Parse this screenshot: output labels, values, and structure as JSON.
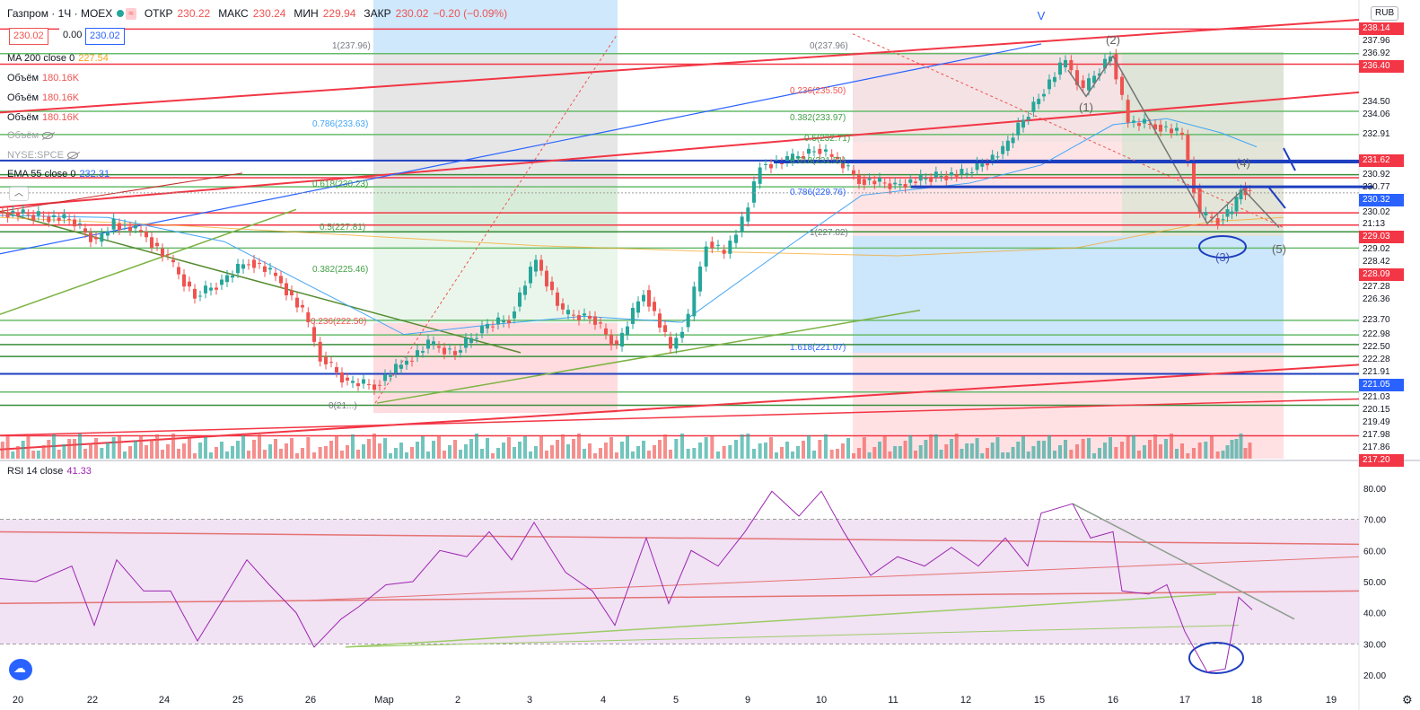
{
  "header": {
    "symbol": "Газпром · 1Ч · MOEX",
    "open_label": "ОТКР",
    "open": "230.22",
    "high_label": "МАКС",
    "high": "230.24",
    "low_label": "МИН",
    "low": "229.94",
    "close_label": "ЗАКР",
    "close": "230.02",
    "change": "−0.20 (−0.09%)"
  },
  "price_boxes": {
    "bid": "230.02",
    "spread": "0.00",
    "ask": "230.02"
  },
  "indicators": [
    {
      "name": "MA 200 close 0",
      "value": "227.54",
      "color": "#f7a21b"
    },
    {
      "name": "Объём",
      "value": "180.16K",
      "color": "#ef5350"
    },
    {
      "name": "Объём",
      "value": "180.16K",
      "color": "#ef5350"
    },
    {
      "name": "Объём",
      "value": "180.16K",
      "color": "#ef5350"
    },
    {
      "name": "Объём",
      "value": "",
      "color": "#a0a4ab"
    },
    {
      "name": "NYSE:SPCE",
      "value": "",
      "color": "#a0a4ab"
    },
    {
      "name": "EMA 55 close 0",
      "value": "232.31",
      "color": "#2962ff"
    }
  ],
  "rsi_legend": {
    "name": "RSI 14 close",
    "value": "41.33"
  },
  "currency": "RUB",
  "chart_data": {
    "type": "candlestick",
    "price_axis": {
      "range": [
        217.2,
        238.6
      ],
      "labels": [
        {
          "v": "238.14",
          "bg": "#f23645"
        },
        {
          "v": "237.96",
          "bg": ""
        },
        {
          "v": "236.92",
          "bg": ""
        },
        {
          "v": "236.40",
          "bg": "#f23645"
        },
        {
          "v": "234.50",
          "bg": ""
        },
        {
          "v": "234.06",
          "bg": ""
        },
        {
          "v": "232.91",
          "bg": ""
        },
        {
          "v": "231.62",
          "bg": "#f23645"
        },
        {
          "v": "230.92",
          "bg": ""
        },
        {
          "v": "230.77",
          "bg": ""
        },
        {
          "v": "230.32",
          "bg": "#2962ff"
        },
        {
          "v": "230.02",
          "bg": ""
        },
        {
          "v": "229.03",
          "bg": "#f23645"
        },
        {
          "v": "229.02",
          "bg": ""
        },
        {
          "v": "228.42",
          "bg": ""
        },
        {
          "v": "228.09",
          "bg": "#f23645"
        },
        {
          "v": "227.28",
          "bg": ""
        },
        {
          "v": "226.36",
          "bg": ""
        },
        {
          "v": "223.70",
          "bg": ""
        },
        {
          "v": "222.98",
          "bg": ""
        },
        {
          "v": "222.50",
          "bg": ""
        },
        {
          "v": "222.28",
          "bg": ""
        },
        {
          "v": "221.91",
          "bg": ""
        },
        {
          "v": "221.05",
          "bg": "#2962ff"
        },
        {
          "v": "221.03",
          "bg": ""
        },
        {
          "v": "220.15",
          "bg": ""
        },
        {
          "v": "219.49",
          "bg": ""
        },
        {
          "v": "217.98",
          "bg": ""
        },
        {
          "v": "217.86",
          "bg": ""
        },
        {
          "v": "217.20",
          "bg": "#f23645"
        }
      ],
      "countdown": "21:13"
    },
    "x_axis_labels": [
      "20",
      "22",
      "24",
      "25",
      "26",
      "Мар",
      "2",
      "3",
      "4",
      "5",
      "9",
      "10",
      "11",
      "12",
      "15",
      "16",
      "17",
      "18",
      "19"
    ],
    "hlines": [
      {
        "y": 238.14,
        "color": "#f23645"
      },
      {
        "y": 236.4,
        "color": "#f23645"
      },
      {
        "y": 236.92,
        "color": "#66bb6a"
      },
      {
        "y": 234.06,
        "color": "#66bb6a"
      },
      {
        "y": 232.91,
        "color": "#66bb6a"
      },
      {
        "y": 231.62,
        "color": "#1e3fbf"
      },
      {
        "y": 230.92,
        "color": "#388e3c"
      },
      {
        "y": 230.77,
        "color": "#f23645"
      },
      {
        "y": 230.32,
        "color": "#66bb6a"
      },
      {
        "y": 229.03,
        "color": "#f23645"
      },
      {
        "y": 228.42,
        "color": "#f23645"
      },
      {
        "y": 228.09,
        "color": "#388e3c"
      },
      {
        "y": 227.28,
        "color": "#66bb6a"
      },
      {
        "y": 223.7,
        "color": "#66bb6a"
      },
      {
        "y": 222.98,
        "color": "#66bb6a"
      },
      {
        "y": 222.5,
        "color": "#388e3c"
      },
      {
        "y": 221.91,
        "color": "#388e3c"
      },
      {
        "y": 221.05,
        "color": "#1e3fbf"
      },
      {
        "y": 220.15,
        "color": "#66bb6a"
      },
      {
        "y": 219.49,
        "color": "#388e3c"
      },
      {
        "y": 217.98,
        "color": "#f23645"
      }
    ],
    "fib_left_labels": [
      "1(237.96)",
      "0.786(233.63)",
      "0.618(230.23)",
      "0.5(227.81)",
      "0.382(225.46)",
      "0.236(222.50)",
      "0(21...)"
    ],
    "fib_right_labels": [
      "0(237.96)",
      "0.236(235.50)",
      "0.382(233.97)",
      "0.5(232.71)",
      "0.618(231.51)",
      "0.786(229.76)",
      "1(227.82)",
      "1.618(221.07)"
    ],
    "wave_labels": [
      "(1)",
      "(2)",
      "(3)",
      "(4)",
      "(5)",
      "V"
    ],
    "rsi_axis": [
      "80.00",
      "70.00",
      "60.00",
      "50.00",
      "40.00",
      "30.00",
      "20.00"
    ],
    "rsi_range": [
      14,
      86
    ],
    "rsi_band": [
      30,
      70
    ],
    "price_series": [
      {
        "t": 0,
        "p": 229.1
      },
      {
        "t": 40,
        "p": 228.9
      },
      {
        "t": 80,
        "p": 228.7
      },
      {
        "t": 110,
        "p": 227.6
      },
      {
        "t": 130,
        "p": 228.5
      },
      {
        "t": 160,
        "p": 228.1
      },
      {
        "t": 190,
        "p": 226.7
      },
      {
        "t": 220,
        "p": 224.9
      },
      {
        "t": 250,
        "p": 225.6
      },
      {
        "t": 280,
        "p": 226.7
      },
      {
        "t": 310,
        "p": 225.9
      },
      {
        "t": 340,
        "p": 224.1
      },
      {
        "t": 360,
        "p": 221.9
      },
      {
        "t": 390,
        "p": 220.6
      },
      {
        "t": 420,
        "p": 220.5
      },
      {
        "t": 450,
        "p": 221.5
      },
      {
        "t": 480,
        "p": 222.5
      },
      {
        "t": 510,
        "p": 222.1
      },
      {
        "t": 540,
        "p": 223.3
      },
      {
        "t": 570,
        "p": 223.8
      },
      {
        "t": 600,
        "p": 226.7
      },
      {
        "t": 630,
        "p": 224.0
      },
      {
        "t": 660,
        "p": 223.9
      },
      {
        "t": 690,
        "p": 222.4
      },
      {
        "t": 720,
        "p": 225.2
      },
      {
        "t": 750,
        "p": 222.3
      },
      {
        "t": 770,
        "p": 223.9
      },
      {
        "t": 790,
        "p": 227.6
      },
      {
        "t": 810,
        "p": 227.0
      },
      {
        "t": 830,
        "p": 228.6
      },
      {
        "t": 850,
        "p": 231.4
      },
      {
        "t": 880,
        "p": 231.6
      },
      {
        "t": 910,
        "p": 232.2
      },
      {
        "t": 930,
        "p": 231.8
      },
      {
        "t": 960,
        "p": 230.7
      },
      {
        "t": 1000,
        "p": 230.4
      },
      {
        "t": 1040,
        "p": 230.8
      },
      {
        "t": 1080,
        "p": 231.0
      },
      {
        "t": 1120,
        "p": 232.1
      },
      {
        "t": 1160,
        "p": 234.8
      },
      {
        "t": 1190,
        "p": 236.6
      },
      {
        "t": 1210,
        "p": 235.1
      },
      {
        "t": 1240,
        "p": 236.9
      },
      {
        "t": 1260,
        "p": 233.5
      },
      {
        "t": 1290,
        "p": 233.4
      },
      {
        "t": 1320,
        "p": 232.9
      },
      {
        "t": 1340,
        "p": 228.9
      },
      {
        "t": 1360,
        "p": 228.7
      },
      {
        "t": 1375,
        "p": 229.1
      },
      {
        "t": 1385,
        "p": 230.3
      },
      {
        "t": 1395,
        "p": 230.0
      }
    ],
    "rsi_series": [
      {
        "t": 0,
        "r": 51
      },
      {
        "t": 40,
        "r": 50
      },
      {
        "t": 80,
        "r": 55
      },
      {
        "t": 105,
        "r": 36
      },
      {
        "t": 130,
        "r": 57
      },
      {
        "t": 160,
        "r": 47
      },
      {
        "t": 190,
        "r": 47
      },
      {
        "t": 220,
        "r": 31
      },
      {
        "t": 250,
        "r": 45
      },
      {
        "t": 275,
        "r": 57
      },
      {
        "t": 300,
        "r": 49
      },
      {
        "t": 330,
        "r": 40
      },
      {
        "t": 350,
        "r": 29
      },
      {
        "t": 380,
        "r": 38
      },
      {
        "t": 400,
        "r": 42
      },
      {
        "t": 430,
        "r": 49
      },
      {
        "t": 460,
        "r": 50
      },
      {
        "t": 490,
        "r": 60
      },
      {
        "t": 520,
        "r": 58
      },
      {
        "t": 545,
        "r": 66
      },
      {
        "t": 570,
        "r": 57
      },
      {
        "t": 595,
        "r": 69
      },
      {
        "t": 630,
        "r": 53
      },
      {
        "t": 660,
        "r": 47
      },
      {
        "t": 685,
        "r": 36
      },
      {
        "t": 720,
        "r": 64
      },
      {
        "t": 745,
        "r": 43
      },
      {
        "t": 770,
        "r": 60
      },
      {
        "t": 800,
        "r": 55
      },
      {
        "t": 830,
        "r": 66
      },
      {
        "t": 860,
        "r": 79
      },
      {
        "t": 890,
        "r": 71
      },
      {
        "t": 915,
        "r": 79
      },
      {
        "t": 940,
        "r": 66
      },
      {
        "t": 970,
        "r": 52
      },
      {
        "t": 1000,
        "r": 58
      },
      {
        "t": 1030,
        "r": 55
      },
      {
        "t": 1060,
        "r": 61
      },
      {
        "t": 1090,
        "r": 55
      },
      {
        "t": 1120,
        "r": 64
      },
      {
        "t": 1145,
        "r": 55
      },
      {
        "t": 1160,
        "r": 72
      },
      {
        "t": 1195,
        "r": 75
      },
      {
        "t": 1215,
        "r": 64
      },
      {
        "t": 1240,
        "r": 66
      },
      {
        "t": 1250,
        "r": 47
      },
      {
        "t": 1280,
        "r": 46
      },
      {
        "t": 1300,
        "r": 49
      },
      {
        "t": 1320,
        "r": 34
      },
      {
        "t": 1345,
        "r": 21
      },
      {
        "t": 1365,
        "r": 22
      },
      {
        "t": 1380,
        "r": 45
      },
      {
        "t": 1395,
        "r": 41
      }
    ]
  }
}
